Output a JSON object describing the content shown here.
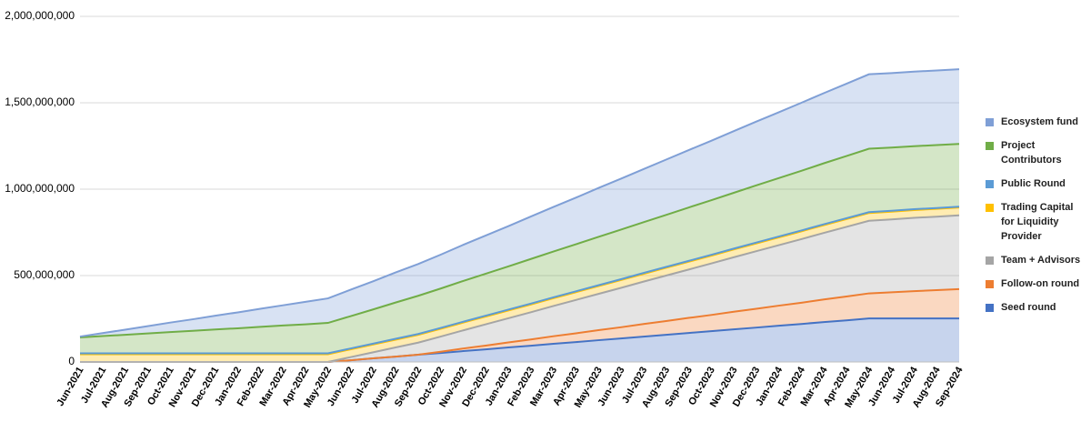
{
  "chart_data": {
    "type": "stacked-area",
    "categories": [
      "Jun-2021",
      "Jul-2021",
      "Aug-2021",
      "Sep-2021",
      "Oct-2021",
      "Nov-2021",
      "Dec-2021",
      "Jan-2022",
      "Feb-2022",
      "Mar-2022",
      "Apr-2022",
      "May-2022",
      "Jun-2022",
      "Jul-2022",
      "Aug-2022",
      "Sep-2022",
      "Oct-2022",
      "Nov-2022",
      "Dec-2022",
      "Jan-2023",
      "Feb-2023",
      "Mar-2023",
      "Apr-2023",
      "May-2023",
      "Jun-2023",
      "Jul-2023",
      "Aug-2023",
      "Sep-2023",
      "Oct-2023",
      "Nov-2023",
      "Dec-2023",
      "Jan-2024",
      "Feb-2024",
      "Mar-2024",
      "Apr-2024",
      "May-2024",
      "Jun-2024",
      "Jul-2024",
      "Aug-2024",
      "Sep-2024"
    ],
    "series": [
      {
        "name": "Seed round",
        "color": "#4472c4",
        "values": [
          0,
          0,
          0,
          0,
          0,
          0,
          0,
          0,
          0,
          0,
          0,
          0,
          10000000,
          21000000,
          31000000,
          42000000,
          52000000,
          63000000,
          73000000,
          84000000,
          94000000,
          105000000,
          115000000,
          126000000,
          136000000,
          147000000,
          157000000,
          168000000,
          178000000,
          189000000,
          199000000,
          210000000,
          220000000,
          231000000,
          241000000,
          252000000,
          252000000,
          252000000,
          252000000,
          252000000
        ]
      },
      {
        "name": "Follow-on round",
        "color": "#ed7d31",
        "values": [
          0,
          0,
          0,
          0,
          0,
          0,
          0,
          0,
          0,
          0,
          0,
          0,
          0,
          0,
          0,
          0,
          7000000,
          15000000,
          22000000,
          29000000,
          36000000,
          44000000,
          51000000,
          58000000,
          65000000,
          73000000,
          80000000,
          87000000,
          94000000,
          102000000,
          109000000,
          116000000,
          123000000,
          131000000,
          138000000,
          145000000,
          151000000,
          158000000,
          164000000,
          170000000
        ]
      },
      {
        "name": "Team + Advisors",
        "color": "#a5a5a5",
        "values": [
          0,
          0,
          0,
          0,
          0,
          0,
          0,
          0,
          0,
          0,
          0,
          0,
          18000000,
          35000000,
          53000000,
          70000000,
          88000000,
          105000000,
          123000000,
          140000000,
          158000000,
          175000000,
          193000000,
          210000000,
          228000000,
          245000000,
          263000000,
          280000000,
          298000000,
          315000000,
          333000000,
          350000000,
          368000000,
          385000000,
          403000000,
          420000000,
          422000000,
          424000000,
          425000000,
          427000000
        ]
      },
      {
        "name": "Trading Capital for Liquidity Provider",
        "color": "#ffc000",
        "values": [
          45000000,
          45000000,
          45000000,
          45000000,
          45000000,
          45000000,
          45000000,
          45000000,
          45000000,
          45000000,
          45000000,
          45000000,
          45000000,
          45000000,
          45000000,
          45000000,
          45000000,
          45000000,
          45000000,
          45000000,
          45000000,
          45000000,
          45000000,
          45000000,
          45000000,
          45000000,
          45000000,
          45000000,
          45000000,
          45000000,
          45000000,
          45000000,
          45000000,
          45000000,
          45000000,
          45000000,
          45000000,
          45000000,
          45000000,
          45000000
        ]
      },
      {
        "name": "Public Round",
        "color": "#5b9bd5",
        "values": [
          5000000,
          5000000,
          5000000,
          5000000,
          5000000,
          5000000,
          5000000,
          5000000,
          5000000,
          5000000,
          5000000,
          5000000,
          5000000,
          5000000,
          5000000,
          5000000,
          5000000,
          5000000,
          5000000,
          5000000,
          5000000,
          5000000,
          5000000,
          5000000,
          5000000,
          5000000,
          5000000,
          5000000,
          5000000,
          5000000,
          5000000,
          5000000,
          5000000,
          5000000,
          5000000,
          5000000,
          5000000,
          5000000,
          5000000,
          5000000
        ]
      },
      {
        "name": "Project Contributors",
        "color": "#70ad47",
        "values": [
          92000000,
          100000000,
          107000000,
          115000000,
          123000000,
          130000000,
          138000000,
          145000000,
          153000000,
          161000000,
          168000000,
          176000000,
          187000000,
          198000000,
          210000000,
          221000000,
          228000000,
          236000000,
          243000000,
          250000000,
          258000000,
          265000000,
          272000000,
          280000000,
          287000000,
          294000000,
          301000000,
          309000000,
          316000000,
          323000000,
          331000000,
          338000000,
          345000000,
          353000000,
          360000000,
          367000000,
          366000000,
          365000000,
          364000000,
          363000000
        ]
      },
      {
        "name": "Ecosystem fund",
        "color": "#7f9fd6",
        "values": [
          5000000,
          17000000,
          30000000,
          42000000,
          55000000,
          67000000,
          80000000,
          92000000,
          105000000,
          117000000,
          130000000,
          142000000,
          153000000,
          163000000,
          174000000,
          184000000,
          196000000,
          209000000,
          221000000,
          233000000,
          246000000,
          258000000,
          270000000,
          283000000,
          295000000,
          307000000,
          320000000,
          332000000,
          344000000,
          357000000,
          369000000,
          381000000,
          394000000,
          406000000,
          418000000,
          431000000,
          431000000,
          431000000,
          432000000,
          432000000
        ]
      }
    ],
    "ylim": [
      0,
      2000000000
    ],
    "yticks": [
      0,
      {
        "value": 500000000,
        "label": "500,000,000"
      },
      {
        "value": 1000000000,
        "label": "1,000,000,000"
      },
      {
        "value": 1500000000,
        "label": "1,500,000,000"
      },
      {
        "value": 2000000000,
        "label": "2,000,000,000"
      }
    ],
    "grid": true
  }
}
